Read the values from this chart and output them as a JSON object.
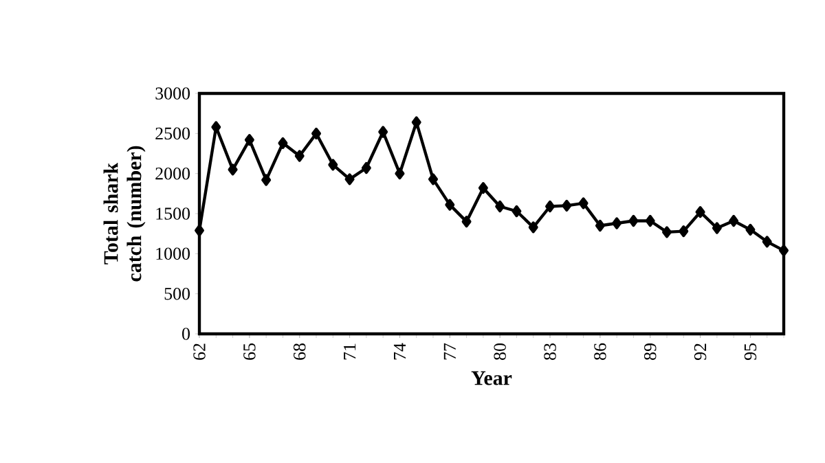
{
  "chart_data": {
    "type": "line",
    "xlabel": "Year",
    "ylabel": "Total shark catch (number)",
    "x": [
      62,
      63,
      64,
      65,
      66,
      67,
      68,
      69,
      70,
      71,
      72,
      73,
      74,
      75,
      76,
      77,
      78,
      79,
      80,
      81,
      82,
      83,
      84,
      85,
      86,
      87,
      88,
      89,
      90,
      91,
      92,
      93,
      94,
      95,
      96,
      97
    ],
    "values": [
      1290,
      2580,
      2050,
      2420,
      1920,
      2380,
      2220,
      2500,
      2110,
      1930,
      2070,
      2520,
      2000,
      2640,
      1930,
      1610,
      1400,
      1820,
      1590,
      1530,
      1330,
      1590,
      1600,
      1630,
      1350,
      1380,
      1410,
      1410,
      1270,
      1280,
      1520,
      1320,
      1410,
      1300,
      1150,
      1040
    ],
    "color": "#000000",
    "marker": "diamond",
    "line_style": "solid",
    "xlim": [
      62,
      97
    ],
    "xticks": [
      62,
      65,
      68,
      71,
      74,
      77,
      80,
      83,
      86,
      89,
      92,
      95
    ],
    "ylim": [
      0,
      3000
    ],
    "yticks": [
      0,
      500,
      1000,
      1500,
      2000,
      2500,
      3000
    ],
    "grid": false
  }
}
